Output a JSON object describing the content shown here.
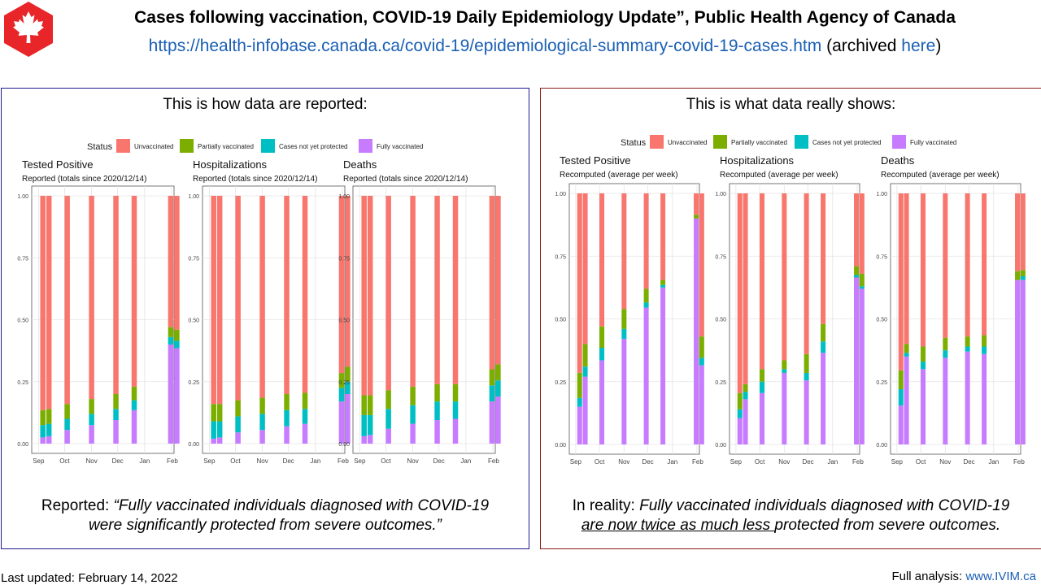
{
  "header": {
    "title": "Cases following vaccination, COVID-19 Daily Epidemiology Update”, Public Health Agency of Canada",
    "url": "https://health-infobase.canada.ca/covid-19/epidemiological-summary-covid-19-cases.htm",
    "archived_prefix": " (archived ",
    "archived_link": "here",
    "archived_suffix": ")"
  },
  "left_panel": {
    "title": "This is how data are reported:",
    "quote_prefix": "Reported: ",
    "quote_line1": "“Fully vaccinated individuals diagnosed with COVID-19",
    "quote_line2": "were significantly protected from severe outcomes.”"
  },
  "right_panel": {
    "title": "This is what data really shows:",
    "quote_prefix": "In reality: ",
    "quote_line1": "Fully vaccinated individuals diagnosed with COVID-19",
    "quote_underlined": "are now twice as much less ",
    "quote_line2_rest": "protected from severe outcomes."
  },
  "footer": {
    "last_updated": "Last updated: February 14, 2022",
    "full_analysis_label": "Full analysis:  ",
    "full_analysis_link": "www.IVIM.ca"
  },
  "colors": {
    "unvaccinated": "#f8766d",
    "partially_vaccinated": "#7cae00",
    "not_yet_protected": "#00bfc4",
    "fully_vaccinated": "#c77cff",
    "left_border": "#1f1b8e",
    "right_border": "#8b1a1a",
    "logo_red": "#e8262a"
  },
  "chart_data": [
    {
      "type": "bar",
      "stacked": true,
      "legend_title": "Status",
      "legend": [
        "Unvaccinated",
        "Partially vaccinated",
        "Cases not yet protected",
        "Fully vaccinated"
      ],
      "x_ticks": [
        "Sep",
        "Oct",
        "Nov",
        "Dec",
        "Jan",
        "Feb"
      ],
      "y_ticks": [
        "0.00",
        "0.25",
        "0.50",
        "0.75",
        "1.00"
      ],
      "ylim": [
        0,
        1
      ],
      "panels": [
        {
          "title": "Tested Positive",
          "subtitle": "Reported (totals since 2020/12/14)",
          "bars": [
            {
              "x": "2021-09-06",
              "fully": 0.025,
              "notyet": 0.05,
              "partial": 0.06
            },
            {
              "x": "2021-09-13",
              "fully": 0.03,
              "notyet": 0.05,
              "partial": 0.06
            },
            {
              "x": "2021-10-04",
              "fully": 0.055,
              "notyet": 0.045,
              "partial": 0.06
            },
            {
              "x": "2021-11-01",
              "fully": 0.075,
              "notyet": 0.045,
              "partial": 0.06
            },
            {
              "x": "2021-11-29",
              "fully": 0.095,
              "notyet": 0.045,
              "partial": 0.06
            },
            {
              "x": "2021-12-20",
              "fully": 0.135,
              "notyet": 0.04,
              "partial": 0.055
            },
            {
              "x": "2022-01-31",
              "fully": 0.4,
              "notyet": 0.03,
              "partial": 0.04
            },
            {
              "x": "2022-02-07",
              "fully": 0.385,
              "notyet": 0.03,
              "partial": 0.045
            }
          ]
        },
        {
          "title": "Hospitalizations",
          "subtitle": "Reported (totals since 2020/12/14)",
          "bars": [
            {
              "x": "2021-09-06",
              "fully": 0.02,
              "notyet": 0.07,
              "partial": 0.07
            },
            {
              "x": "2021-09-13",
              "fully": 0.025,
              "notyet": 0.065,
              "partial": 0.07
            },
            {
              "x": "2021-10-04",
              "fully": 0.045,
              "notyet": 0.065,
              "partial": 0.065
            },
            {
              "x": "2021-11-01",
              "fully": 0.055,
              "notyet": 0.065,
              "partial": 0.065
            },
            {
              "x": "2021-11-29",
              "fully": 0.07,
              "notyet": 0.065,
              "partial": 0.065
            },
            {
              "x": "2021-12-20",
              "fully": 0.08,
              "notyet": 0.06,
              "partial": 0.065
            },
            {
              "x": "2022-01-31",
              "fully": 0.17,
              "notyet": 0.055,
              "partial": 0.06
            },
            {
              "x": "2022-02-07",
              "fully": 0.2,
              "notyet": 0.05,
              "partial": 0.06
            }
          ]
        },
        {
          "title": "Deaths",
          "subtitle": "Reported (totals since 2020/12/14)",
          "bars": [
            {
              "x": "2021-09-06",
              "fully": 0.03,
              "notyet": 0.085,
              "partial": 0.08
            },
            {
              "x": "2021-09-13",
              "fully": 0.035,
              "notyet": 0.08,
              "partial": 0.08
            },
            {
              "x": "2021-10-04",
              "fully": 0.06,
              "notyet": 0.08,
              "partial": 0.075
            },
            {
              "x": "2021-11-01",
              "fully": 0.08,
              "notyet": 0.075,
              "partial": 0.075
            },
            {
              "x": "2021-11-29",
              "fully": 0.095,
              "notyet": 0.075,
              "partial": 0.07
            },
            {
              "x": "2021-12-20",
              "fully": 0.1,
              "notyet": 0.07,
              "partial": 0.07
            },
            {
              "x": "2022-01-31",
              "fully": 0.17,
              "notyet": 0.065,
              "partial": 0.065
            },
            {
              "x": "2022-02-07",
              "fully": 0.19,
              "notyet": 0.065,
              "partial": 0.065
            }
          ]
        }
      ]
    },
    {
      "type": "bar",
      "stacked": true,
      "legend_title": "Status",
      "legend": [
        "Unvaccinated",
        "Partially vaccinated",
        "Cases not yet protected",
        "Fully vaccinated"
      ],
      "x_ticks": [
        "Sep",
        "Oct",
        "Nov",
        "Dec",
        "Jan",
        "Feb"
      ],
      "y_ticks": [
        "0.00",
        "0.25",
        "0.50",
        "0.75",
        "1.00"
      ],
      "ylim": [
        0,
        1
      ],
      "panels": [
        {
          "title": "Tested Positive",
          "subtitle": "Recomputed (average per week)",
          "bars": [
            {
              "x": "2021-09-06",
              "fully": 0.15,
              "notyet": 0.035,
              "partial": 0.1
            },
            {
              "x": "2021-09-13",
              "fully": 0.27,
              "notyet": 0.04,
              "partial": 0.09
            },
            {
              "x": "2021-10-04",
              "fully": 0.335,
              "notyet": 0.05,
              "partial": 0.085
            },
            {
              "x": "2021-11-01",
              "fully": 0.42,
              "notyet": 0.04,
              "partial": 0.08
            },
            {
              "x": "2021-11-29",
              "fully": 0.545,
              "notyet": 0.02,
              "partial": 0.055
            },
            {
              "x": "2021-12-20",
              "fully": 0.625,
              "notyet": 0.01,
              "partial": 0.02
            },
            {
              "x": "2022-01-31",
              "fully": 0.9,
              "notyet": 0.0,
              "partial": 0.015
            },
            {
              "x": "2022-02-07",
              "fully": 0.315,
              "notyet": 0.03,
              "partial": 0.085
            }
          ]
        },
        {
          "title": "Hospitalizations",
          "subtitle": "Recomputed (average per week)",
          "bars": [
            {
              "x": "2021-09-06",
              "fully": 0.105,
              "notyet": 0.035,
              "partial": 0.065
            },
            {
              "x": "2021-09-13",
              "fully": 0.18,
              "notyet": 0.03,
              "partial": 0.03
            },
            {
              "x": "2021-10-04",
              "fully": 0.205,
              "notyet": 0.045,
              "partial": 0.05
            },
            {
              "x": "2021-11-01",
              "fully": 0.285,
              "notyet": 0.015,
              "partial": 0.035
            },
            {
              "x": "2021-11-29",
              "fully": 0.255,
              "notyet": 0.03,
              "partial": 0.075
            },
            {
              "x": "2021-12-20",
              "fully": 0.365,
              "notyet": 0.045,
              "partial": 0.07
            },
            {
              "x": "2022-01-31",
              "fully": 0.665,
              "notyet": 0.01,
              "partial": 0.035
            },
            {
              "x": "2022-02-07",
              "fully": 0.62,
              "notyet": 0.01,
              "partial": 0.05
            }
          ]
        },
        {
          "title": "Deaths",
          "subtitle": "Recomputed (average per week)",
          "bars": [
            {
              "x": "2021-09-06",
              "fully": 0.155,
              "notyet": 0.065,
              "partial": 0.075
            },
            {
              "x": "2021-09-13",
              "fully": 0.35,
              "notyet": 0.015,
              "partial": 0.035
            },
            {
              "x": "2021-10-04",
              "fully": 0.3,
              "notyet": 0.03,
              "partial": 0.06
            },
            {
              "x": "2021-11-01",
              "fully": 0.345,
              "notyet": 0.03,
              "partial": 0.05
            },
            {
              "x": "2021-11-29",
              "fully": 0.37,
              "notyet": 0.02,
              "partial": 0.04
            },
            {
              "x": "2021-12-20",
              "fully": 0.36,
              "notyet": 0.03,
              "partial": 0.045
            },
            {
              "x": "2022-01-31",
              "fully": 0.655,
              "notyet": 0.0,
              "partial": 0.035
            },
            {
              "x": "2022-02-07",
              "fully": 0.655,
              "notyet": 0.015,
              "partial": 0.025
            }
          ]
        }
      ]
    }
  ]
}
